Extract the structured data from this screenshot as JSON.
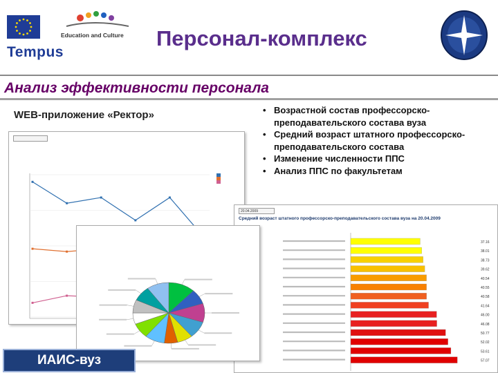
{
  "header": {
    "title": "Персонал-комплекс",
    "logos": {
      "program": "Tempus",
      "partner": "Education and Culture"
    }
  },
  "section_title": "Анализ эффективности персонала",
  "app_caption": "WEB-приложение «Ректор»",
  "bullets": [
    "Возрастной состав профессорско-преподавательского состава вуза",
    "Средний возраст штатного профессорско-преподавательского состава",
    "Изменение численности ППС",
    "Анализ ППС по факультетам"
  ],
  "bar_window": {
    "date": "20.04.2009",
    "caption": "Средний возраст штатного профессорско-преподавательского состава вуза на 20.04.2009",
    "values": [
      37.16,
      38.01,
      38.73,
      39.62,
      40.54,
      40.55,
      40.58,
      41.64,
      46.0,
      46.08,
      50.77,
      52.02,
      53.61,
      57.07
    ],
    "colors": [
      "#ffff00",
      "#ffff00",
      "#f8d000",
      "#f8c000",
      "#f89c00",
      "#f88000",
      "#f06020",
      "#f04020",
      "#e82020",
      "#e82020",
      "#e01010",
      "#e00000",
      "#e00000",
      "#e00000"
    ]
  },
  "pie_window": {
    "slices": [
      {
        "value": 12,
        "color": "#00c040"
      },
      {
        "value": 8,
        "color": "#3060c0"
      },
      {
        "value": 10,
        "color": "#c04090"
      },
      {
        "value": 9,
        "color": "#40a0d0"
      },
      {
        "value": 7,
        "color": "#e0e000"
      },
      {
        "value": 6,
        "color": "#e06000"
      },
      {
        "value": 9,
        "color": "#60c0ff"
      },
      {
        "value": 8,
        "color": "#80e000"
      },
      {
        "value": 6,
        "color": "#ffffff"
      },
      {
        "value": 7,
        "color": "#c0c0c0"
      },
      {
        "value": 8,
        "color": "#00a0a0"
      },
      {
        "value": 10,
        "color": "#90c0f0"
      }
    ]
  },
  "line_window": {
    "series": [
      {
        "color": "#3070b0",
        "values": [
          95,
          80,
          84,
          68,
          84,
          56
        ]
      },
      {
        "color": "#e07030",
        "values": [
          48,
          46,
          48,
          44,
          44,
          42
        ]
      },
      {
        "color": "#d06090",
        "values": [
          10,
          15,
          14,
          12,
          14,
          12
        ]
      }
    ],
    "ylim": [
      0,
      100
    ]
  },
  "footer_badge": "ИАИС-вуз"
}
